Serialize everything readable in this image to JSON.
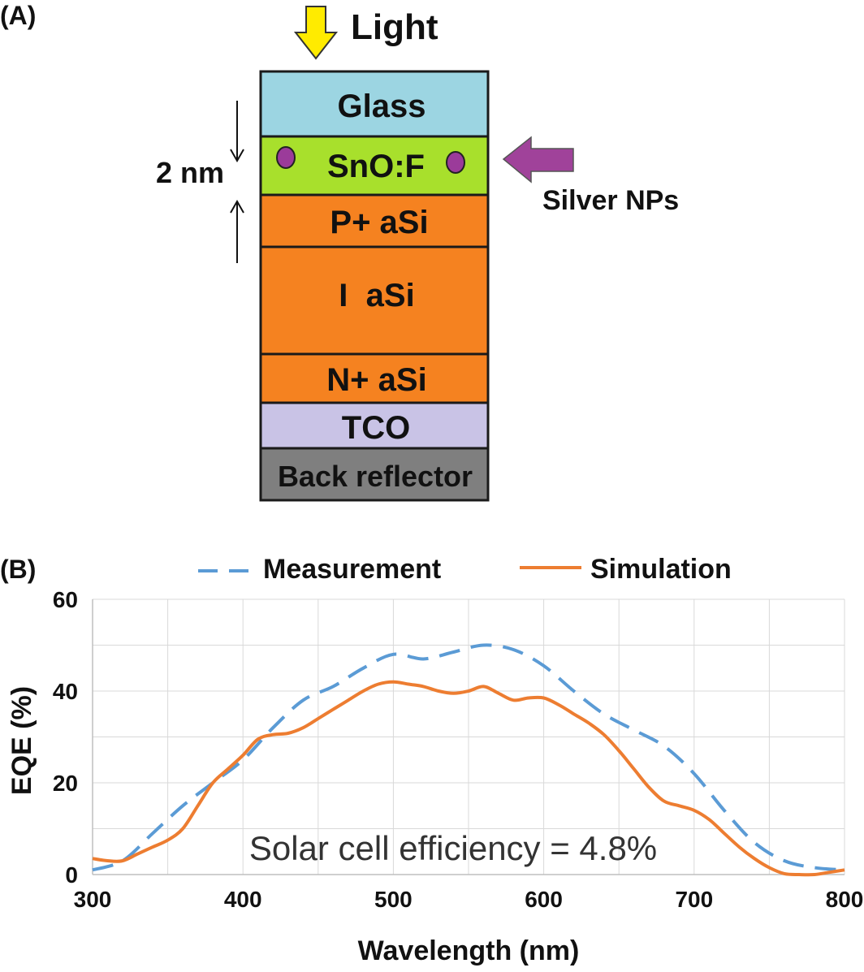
{
  "panel_a": {
    "label": "(A)",
    "light_label": "Light",
    "layers": [
      {
        "name": "Glass",
        "color": "#9cd5e2"
      },
      {
        "name": "SnO:F",
        "color": "#a8e02c"
      },
      {
        "name": "P+ aSi",
        "color": "#f58220"
      },
      {
        "name": "I  aSi",
        "color": "#f58220"
      },
      {
        "name": "N+ aSi",
        "color": "#f58220"
      },
      {
        "name": "TCO",
        "color": "#c9c3e6"
      },
      {
        "name": "Back reflector",
        "color": "#7f7f7f"
      }
    ],
    "thickness_label": "2 nm",
    "nps_label": "Silver NPs",
    "colors": {
      "arrow_light": "#ffeb00",
      "arrow_nps": "#a0429a",
      "np_dot": "#9b3b9a"
    }
  },
  "panel_b": {
    "label": "(B)",
    "annotation": "Solar cell efficiency = 4.8%"
  },
  "chart_data": {
    "type": "line",
    "xlabel": "Wavelength (nm)",
    "ylabel": "EQE (%)",
    "xlim": [
      300,
      800
    ],
    "ylim": [
      0,
      60
    ],
    "xticks": [
      300,
      400,
      500,
      600,
      700,
      800
    ],
    "yticks": [
      0,
      20,
      40,
      60
    ],
    "grid": true,
    "legend": "top",
    "series": [
      {
        "name": "Measurement",
        "style": "dashed",
        "color": "#5b9bd5",
        "x": [
          300,
          320,
          340,
          360,
          380,
          400,
          420,
          440,
          460,
          480,
          500,
          520,
          540,
          560,
          580,
          600,
          620,
          640,
          660,
          680,
          700,
          720,
          740,
          760,
          780,
          800
        ],
        "y": [
          1,
          3,
          9,
          15,
          20,
          25,
          32,
          38,
          41,
          45,
          48,
          47,
          48.5,
          50,
          49,
          45.5,
          40,
          35,
          31.5,
          28,
          22,
          14,
          7,
          3,
          1.5,
          1
        ]
      },
      {
        "name": "Simulation",
        "style": "solid",
        "color": "#ed7d31",
        "x": [
          300,
          310,
          320,
          330,
          340,
          350,
          360,
          370,
          380,
          390,
          400,
          410,
          420,
          430,
          440,
          450,
          460,
          470,
          480,
          490,
          500,
          510,
          520,
          530,
          540,
          550,
          560,
          570,
          580,
          590,
          600,
          610,
          620,
          630,
          640,
          650,
          660,
          670,
          680,
          690,
          700,
          710,
          720,
          730,
          740,
          750,
          760,
          770,
          780,
          790,
          800
        ],
        "y": [
          3.5,
          3,
          3,
          4.5,
          6,
          7.5,
          10,
          15,
          20,
          23,
          26,
          29.5,
          30.5,
          30.8,
          32,
          34,
          36,
          38,
          40,
          41.5,
          42,
          41.5,
          41,
          40,
          39.5,
          40,
          41,
          39.5,
          38,
          38.5,
          38.5,
          37,
          35,
          33,
          30.5,
          27,
          23,
          19,
          16,
          15,
          14,
          12,
          9,
          6,
          3.5,
          1.5,
          0.2,
          0,
          0,
          0.5,
          1
        ]
      }
    ]
  }
}
